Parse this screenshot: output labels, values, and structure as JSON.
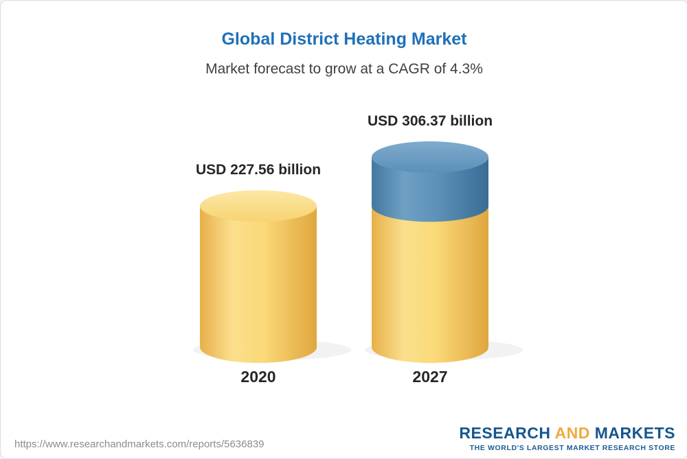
{
  "header": {
    "title": "Global District Heating Market",
    "subtitle": "Market forecast to grow at a CAGR of 4.3%"
  },
  "chart_data": {
    "type": "bar",
    "variant": "3d-cylinder",
    "title": "Global District Heating Market",
    "subtitle": "Market forecast to grow at a CAGR of 4.3%",
    "cagr_pct": 4.3,
    "unit": "USD billion",
    "categories": [
      "2020",
      "2027"
    ],
    "values": [
      227.56,
      306.37
    ],
    "value_labels": [
      "USD 227.56 billion",
      "USD 306.37 billion"
    ],
    "bars": [
      {
        "category": "2020",
        "value": 227.56,
        "label": "USD 227.56 billion",
        "segments": [
          {
            "value": 227.56,
            "color": "gold"
          }
        ]
      },
      {
        "category": "2027",
        "value": 306.37,
        "label": "USD 306.37 billion",
        "segments": [
          {
            "value": 227.56,
            "color": "gold"
          },
          {
            "value": 78.81,
            "color": "blue"
          }
        ]
      }
    ],
    "colors": {
      "gold": "#F6CE68",
      "blue": "#5588B1",
      "title": "#1F70B8"
    },
    "legend": "none",
    "grid": false
  },
  "footer": {
    "url": "https://www.researchandmarkets.com/reports/5636839",
    "logo": {
      "part1": "RESEARCH",
      "part2": "AND",
      "part3": "MARKETS",
      "tagline": "THE WORLD'S LARGEST MARKET RESEARCH STORE"
    }
  }
}
